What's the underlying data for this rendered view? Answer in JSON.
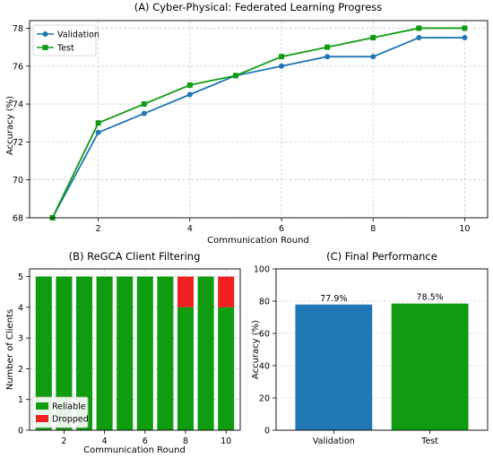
{
  "chart_data": [
    {
      "id": "A",
      "type": "line",
      "title": "(A) Cyber-Physical: Federated Learning Progress",
      "xlabel": "Communication Round",
      "ylabel": "Accuracy (%)",
      "x": [
        1,
        2,
        3,
        4,
        5,
        6,
        7,
        8,
        9,
        10
      ],
      "xticks": [
        2,
        4,
        6,
        8,
        10
      ],
      "yticks": [
        68,
        70,
        72,
        74,
        76,
        78
      ],
      "xlim": [
        0.5,
        10.5
      ],
      "ylim": [
        68,
        78.4
      ],
      "grid": true,
      "legend": "upper-left",
      "series": [
        {
          "name": "Validation",
          "color": "#1f77b4",
          "marker": "circle",
          "values": [
            68.0,
            72.5,
            73.5,
            74.5,
            75.5,
            76.0,
            76.5,
            76.5,
            77.5,
            77.5
          ]
        },
        {
          "name": "Test",
          "color": "#109c10",
          "marker": "square",
          "values": [
            68.0,
            73.0,
            74.0,
            75.0,
            75.5,
            76.5,
            77.0,
            77.5,
            78.0,
            78.0
          ]
        }
      ]
    },
    {
      "id": "B",
      "type": "bar",
      "stacked": true,
      "title": "(B) ReGCA Client Filtering",
      "xlabel": "Communication Round",
      "ylabel": "Number of Clients",
      "x": [
        1,
        2,
        3,
        4,
        5,
        6,
        7,
        8,
        9,
        10
      ],
      "xticks": [
        2,
        4,
        6,
        8,
        10
      ],
      "yticks": [
        0,
        1,
        2,
        3,
        4,
        5
      ],
      "xlim": [
        0.3,
        10.7
      ],
      "ylim": [
        0,
        5.25
      ],
      "grid": true,
      "legend": "lower-left",
      "series": [
        {
          "name": "Reliable",
          "color": "#109c10",
          "values": [
            5,
            5,
            5,
            5,
            5,
            5,
            5,
            4,
            5,
            4
          ]
        },
        {
          "name": "Dropped",
          "color": "#f02020",
          "values": [
            0,
            0,
            0,
            0,
            0,
            0,
            0,
            1,
            0,
            1
          ]
        }
      ]
    },
    {
      "id": "C",
      "type": "bar",
      "title": "(C) Final Performance",
      "xlabel": "",
      "ylabel": "Accuracy (%)",
      "categories": [
        "Validation",
        "Test"
      ],
      "values": [
        77.9,
        78.5
      ],
      "data_labels": [
        "77.9%",
        "78.5%"
      ],
      "colors": [
        "#1f77b4",
        "#109c10"
      ],
      "yticks": [
        0,
        20,
        40,
        60,
        80,
        100
      ],
      "ylim": [
        0,
        100
      ],
      "grid": true
    }
  ]
}
